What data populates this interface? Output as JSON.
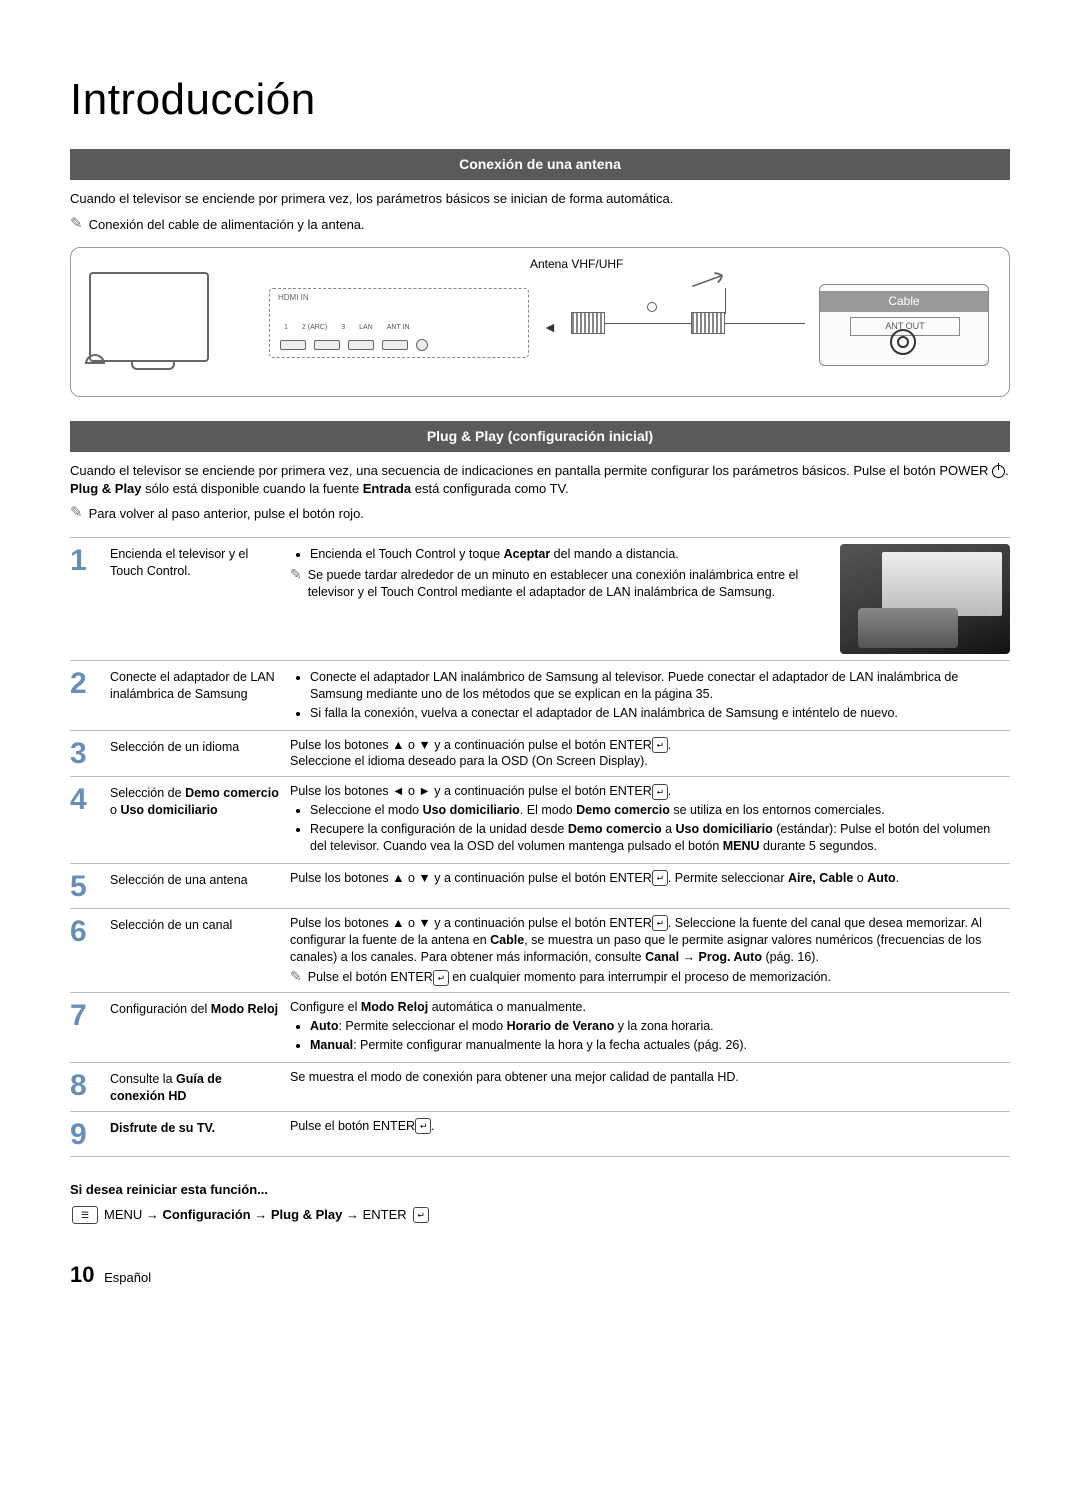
{
  "page": {
    "title": "Introducción",
    "section1_title": "Conexión de una antena",
    "section1_intro": "Cuando el televisor se enciende por primera vez, los parámetros básicos se inician de forma automática.",
    "section1_note": "Conexión del cable de alimentación y la antena.",
    "diagram": {
      "antenna_label": "Antena VHF/UHF",
      "cable_label": "Cable",
      "antout_label": "ANT OUT",
      "hdmi_label": "HDMI IN",
      "port_labels": [
        "1",
        "2 (ARC)",
        "3",
        "LAN",
        "ANT IN"
      ]
    },
    "section2_title": "Plug & Play (configuración inicial)",
    "section2_intro_a": "Cuando el televisor se enciende por primera vez, una secuencia de indicaciones en pantalla permite configurar los parámetros básicos. Pulse el botón POWER ",
    "section2_intro_b": ". Plug & Play sólo está disponible cuando la fuente Entrada está configurada como TV.",
    "plug_play_bold": "Plug & Play",
    "entrada_bold": "Entrada",
    "section2_note": "Para volver al paso anterior, pulse el botón rojo.",
    "steps": [
      {
        "num": "1",
        "label": "Encienda el televisor y el Touch Control.",
        "bullets": [
          "Encienda el Touch Control y toque <b>Aceptar</b> del mando a distancia."
        ],
        "subnote": "Se puede tardar alrededor de un minuto en establecer una conexión inalámbrica entre el televisor y el Touch Control mediante el adaptador de LAN inalámbrica de Samsung.",
        "has_thumb": true
      },
      {
        "num": "2",
        "label": "Conecte el adaptador de LAN inalámbrica de Samsung",
        "bullets": [
          "Conecte el adaptador LAN inalámbrico de Samsung al televisor. Puede conectar el adaptador de LAN inalámbrica de Samsung mediante uno de los métodos que se explican en la página 35.",
          "Si falla la conexión, vuelva a conectar el adaptador de LAN inalámbrica de Samsung e inténtelo de nuevo."
        ]
      },
      {
        "num": "3",
        "label": "Selección de un idioma",
        "desc_pre": "Pulse los botones ▲ o ▼ y a continuación pulse el botón ENTER",
        "desc_post": ".",
        "desc_line2": "Seleccione el idioma deseado para la OSD (On Screen Display)."
      },
      {
        "num": "4",
        "label_html": "Selección de <b>Demo comercio</b> o <b>Uso domiciliario</b>",
        "desc_pre": "Pulse los botones ◄ o ► y a continuación pulse el botón ENTER",
        "desc_post": ".",
        "bullets": [
          "Seleccione el modo <b>Uso domiciliario</b>. El modo <b>Demo comercio</b> se utiliza en los entornos comerciales.",
          "Recupere la configuración de la unidad desde <b>Demo comercio</b> a <b>Uso domiciliario</b> (estándar): Pulse el botón del volumen del televisor. Cuando vea la OSD del volumen mantenga pulsado el botón <b>MENU</b> durante 5 segundos."
        ]
      },
      {
        "num": "5",
        "label": "Selección de una antena",
        "desc_pre": "Pulse los botones ▲ o ▼ y a continuación pulse el botón ENTER",
        "desc_post": ". Permite seleccionar <b>Aire, Cable</b> o <b>Auto</b>."
      },
      {
        "num": "6",
        "label": "Selección de un canal",
        "desc_pre": "Pulse los botones ▲ o ▼ y a continuación pulse el botón ENTER",
        "desc_post": ". Seleccione la fuente del canal que desea memorizar. Al configurar la fuente de la antena en <b>Cable</b>, se muestra un paso que le permite asignar valores numéricos (frecuencias de los canales) a los canales. Para obtener más información, consulte <b>Canal → Prog. Auto</b> (pág. 16).",
        "subnote_pre": "Pulse el botón ENTER",
        "subnote_post": " en cualquier momento para interrumpir el proceso de memorización."
      },
      {
        "num": "7",
        "label_html": "Configuración del <b>Modo Reloj</b>",
        "desc_line1": "Configure el <b>Modo Reloj</b> automática o manualmente.",
        "bullets": [
          "<b>Auto</b>: Permite seleccionar el modo <b>Horario de Verano</b> y la zona horaria.",
          "<b>Manual</b>: Permite configurar manualmente la hora y la fecha actuales (pág. 26)."
        ]
      },
      {
        "num": "8",
        "label_html": "Consulte la <b>Guía de conexión HD</b>",
        "desc_line1": "Se muestra el modo de conexión para obtener una mejor calidad de pantalla HD."
      },
      {
        "num": "9",
        "label_html": "<b>Disfrute de su TV.</b>",
        "desc_pre": "Pulse el botón ENTER",
        "desc_post": "."
      }
    ],
    "reset": {
      "heading": "Si desea reiniciar esta función...",
      "path_html": "MENU → <b>Configuración</b> → <b>Plug & Play</b> → ENTER"
    },
    "footer": {
      "pagenum": "10",
      "lang": "Español"
    },
    "enter_glyph": "↵",
    "colors": {
      "section_bar_bg": "#5a5a5a",
      "step_num_color": "#6a8fb5",
      "border_color": "#bbbbbb"
    }
  }
}
